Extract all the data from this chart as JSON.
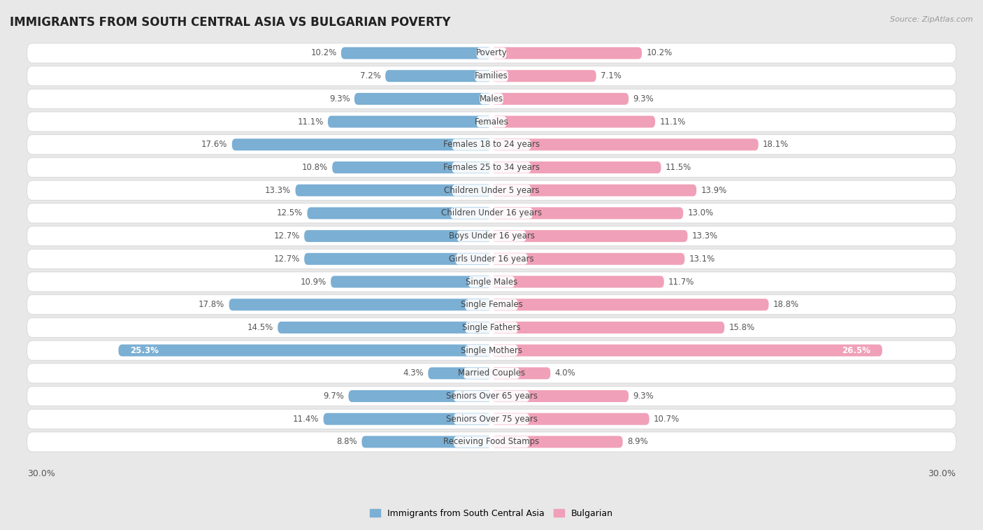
{
  "title": "IMMIGRANTS FROM SOUTH CENTRAL ASIA VS BULGARIAN POVERTY",
  "source": "Source: ZipAtlas.com",
  "categories": [
    "Poverty",
    "Families",
    "Males",
    "Females",
    "Females 18 to 24 years",
    "Females 25 to 34 years",
    "Children Under 5 years",
    "Children Under 16 years",
    "Boys Under 16 years",
    "Girls Under 16 years",
    "Single Males",
    "Single Females",
    "Single Fathers",
    "Single Mothers",
    "Married Couples",
    "Seniors Over 65 years",
    "Seniors Over 75 years",
    "Receiving Food Stamps"
  ],
  "left_values": [
    10.2,
    7.2,
    9.3,
    11.1,
    17.6,
    10.8,
    13.3,
    12.5,
    12.7,
    12.7,
    10.9,
    17.8,
    14.5,
    25.3,
    4.3,
    9.7,
    11.4,
    8.8
  ],
  "right_values": [
    10.2,
    7.1,
    9.3,
    11.1,
    18.1,
    11.5,
    13.9,
    13.0,
    13.3,
    13.1,
    11.7,
    18.8,
    15.8,
    26.5,
    4.0,
    9.3,
    10.7,
    8.9
  ],
  "left_color": "#7bafd4",
  "right_color": "#f0a0b8",
  "background_color": "#e8e8e8",
  "row_color_even": "#f5f5f5",
  "row_color_odd": "#ebebeb",
  "max_value": 30.0,
  "title_fontsize": 12,
  "bar_label_fontsize": 8.5,
  "value_fontsize": 8.5,
  "cat_label_fontsize": 8.5
}
